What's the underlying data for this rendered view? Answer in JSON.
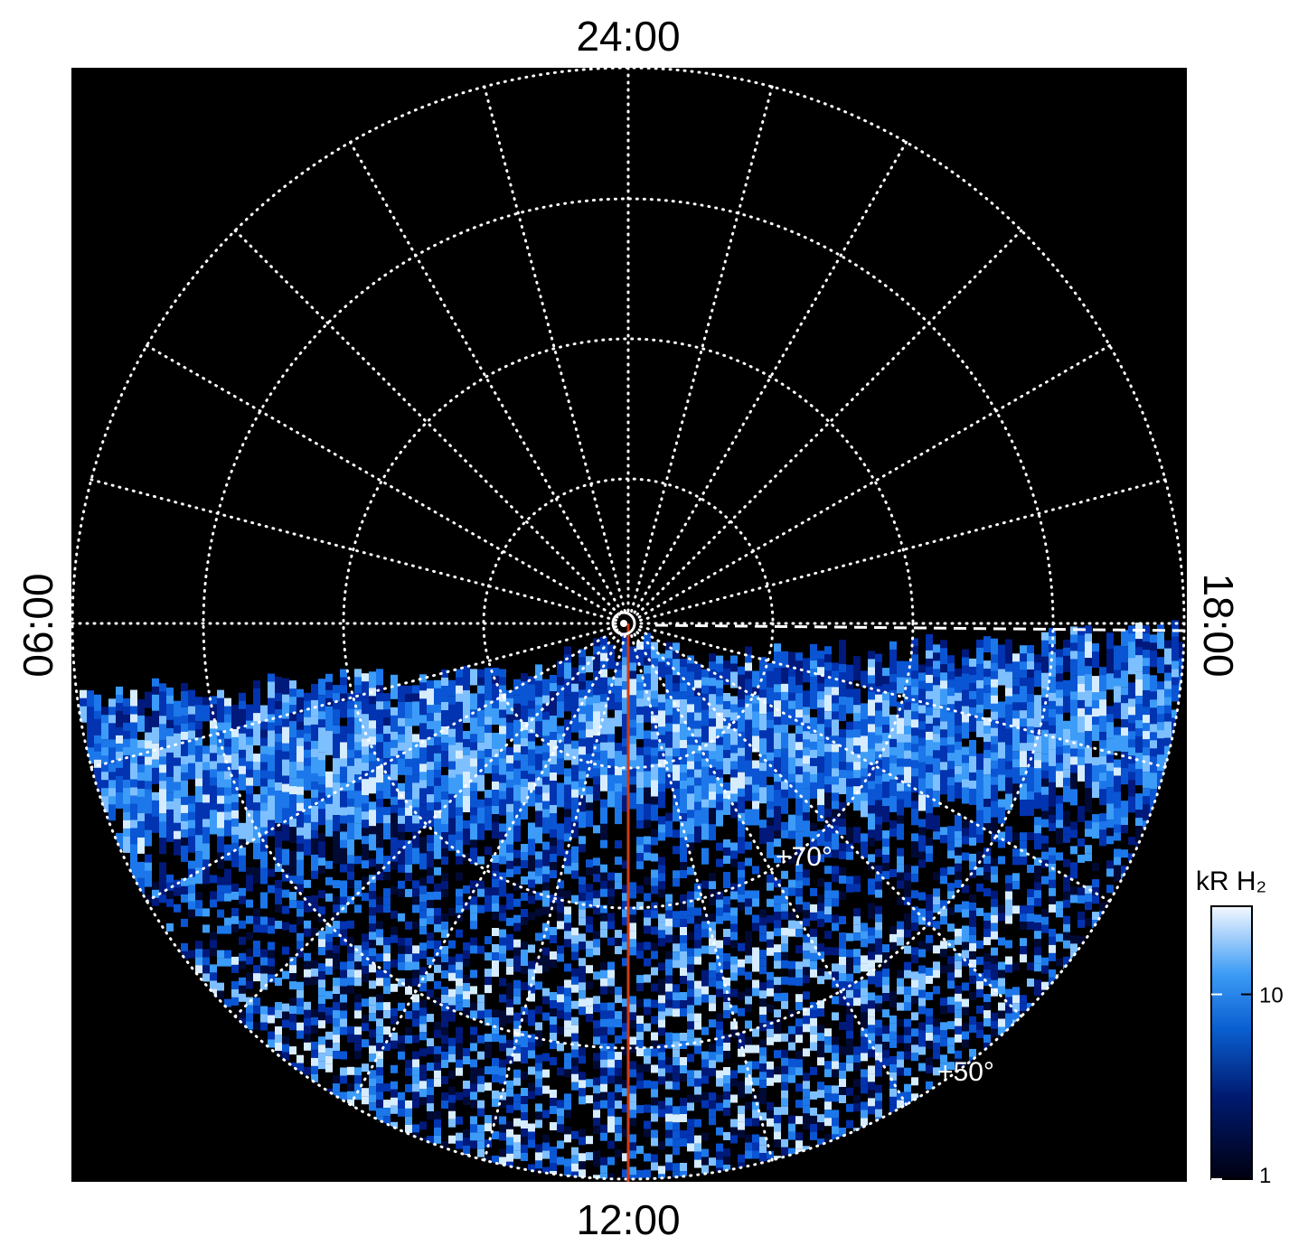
{
  "time_labels": {
    "top": "24:00",
    "bottom": "12:00",
    "left": "06:00",
    "right": "18:00"
  },
  "latitude_labels": [
    "+70°",
    "+50°"
  ],
  "colorbar": {
    "title": "kR H₂",
    "lim": [
      1,
      30
    ],
    "log": true,
    "ticks": [
      1,
      10
    ]
  }
}
